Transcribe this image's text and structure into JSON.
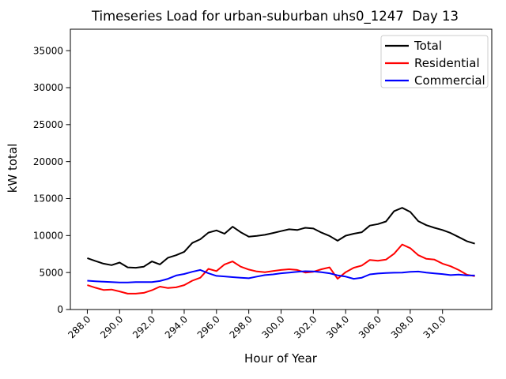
{
  "chart_data": {
    "type": "line",
    "title": "Timeseries Load for urban-suburban uhs0_1247  Day 13",
    "xlabel": "Hour of Year",
    "ylabel": "kW total",
    "grid": false,
    "legend_position": "upper right",
    "xlim": [
      286.95,
      313.05
    ],
    "ylim": [
      0,
      37900
    ],
    "xtick_values": [
      288,
      290,
      292,
      294,
      296,
      298,
      300,
      302,
      304,
      306,
      308,
      310
    ],
    "xtick_labels": [
      "288.0",
      "290.0",
      "292.0",
      "294.0",
      "296.0",
      "298.0",
      "300.0",
      "302.0",
      "304.0",
      "306.0",
      "308.0",
      "310.0"
    ],
    "ytick_values": [
      0,
      5000,
      10000,
      15000,
      20000,
      25000,
      30000,
      35000
    ],
    "ytick_labels": [
      "0",
      "5000",
      "10000",
      "15000",
      "20000",
      "25000",
      "30000",
      "35000"
    ],
    "x": [
      288.0,
      288.5,
      289.0,
      289.5,
      290.0,
      290.5,
      291.0,
      291.5,
      292.0,
      292.5,
      293.0,
      293.5,
      294.0,
      294.5,
      295.0,
      295.5,
      296.0,
      296.5,
      297.0,
      297.5,
      298.0,
      298.5,
      299.0,
      299.5,
      300.0,
      300.5,
      301.0,
      301.5,
      302.0,
      302.5,
      303.0,
      303.5,
      304.0,
      304.5,
      305.0,
      305.5,
      306.0,
      306.5,
      307.0,
      307.5,
      308.0,
      308.5,
      309.0,
      309.5,
      310.0,
      310.5,
      311.0,
      311.5,
      312.0
    ],
    "series": [
      {
        "name": "Total",
        "color": "#000000",
        "values": [
          6950,
          6550,
          6200,
          6000,
          6350,
          5700,
          5650,
          5800,
          6500,
          6100,
          7000,
          7350,
          7800,
          9000,
          9500,
          10400,
          10700,
          10250,
          11200,
          10450,
          9850,
          9950,
          10100,
          10350,
          10600,
          10850,
          10750,
          11050,
          10950,
          10400,
          9950,
          9300,
          9980,
          10250,
          10450,
          11350,
          11550,
          11900,
          13300,
          13750,
          13200,
          11950,
          11400,
          11050,
          10750,
          10350,
          9800,
          9250,
          8900
        ]
      },
      {
        "name": "Residential",
        "color": "#ff0000",
        "values": [
          3300,
          2950,
          2650,
          2700,
          2450,
          2150,
          2150,
          2250,
          2600,
          3100,
          2900,
          3000,
          3300,
          3900,
          4300,
          5500,
          5200,
          6100,
          6500,
          5800,
          5400,
          5150,
          5050,
          5200,
          5350,
          5450,
          5350,
          5000,
          5100,
          5450,
          5700,
          4150,
          5050,
          5650,
          5950,
          6700,
          6600,
          6750,
          7550,
          8800,
          8300,
          7350,
          6850,
          6750,
          6200,
          5850,
          5350,
          4720,
          4500
        ]
      },
      {
        "name": "Commercial",
        "color": "#0000ff",
        "values": [
          3900,
          3820,
          3760,
          3700,
          3660,
          3660,
          3700,
          3700,
          3700,
          3850,
          4150,
          4600,
          4800,
          5100,
          5350,
          4900,
          4550,
          4470,
          4380,
          4300,
          4230,
          4450,
          4650,
          4750,
          4900,
          5000,
          5100,
          5180,
          5150,
          5050,
          4900,
          4620,
          4450,
          4150,
          4300,
          4750,
          4870,
          4940,
          4970,
          5000,
          5100,
          5140,
          5000,
          4890,
          4790,
          4650,
          4720,
          4610,
          4600
        ]
      }
    ]
  }
}
